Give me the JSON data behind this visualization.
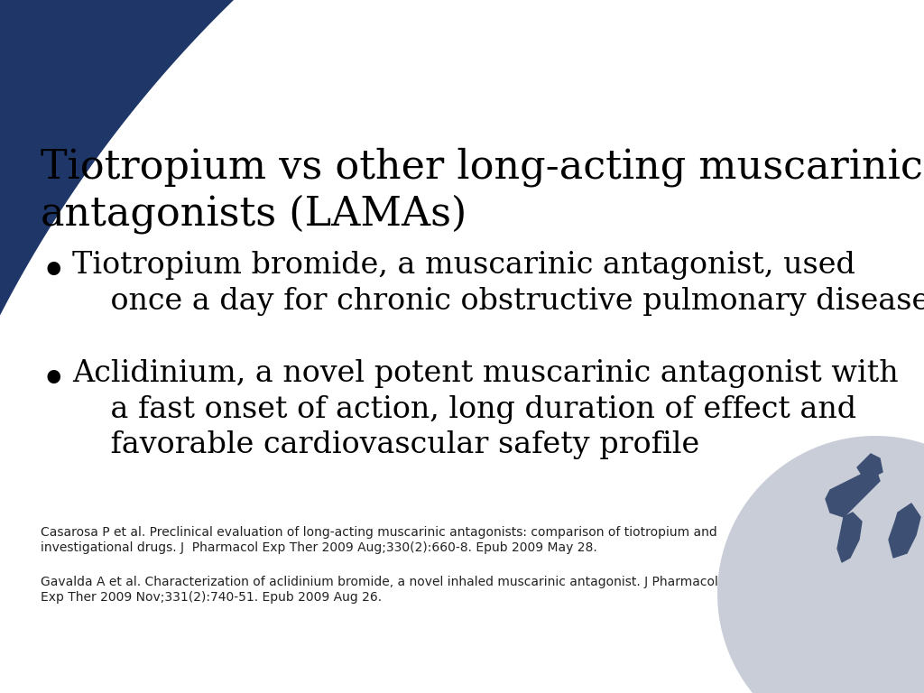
{
  "title_line1": "Tiotropium vs other long-acting muscarinic",
  "title_line2": "antagonists (LAMAs)",
  "bullet1_line1": "Tiotropium bromide, a muscarinic antagonist, used",
  "bullet1_line2": "once a day for chronic obstructive pulmonary disease",
  "bullet2_line1": "Aclidinium, a novel potent muscarinic antagonist with",
  "bullet2_line2": "a fast onset of action, long duration of effect and",
  "bullet2_line3": "favorable cardiovascular safety profile",
  "ref1": "Casarosa P et al. Preclinical evaluation of long-acting muscarinic antagonists: comparison of tiotropium and\ninvestigational drugs. J  Pharmacol Exp Ther 2009 Aug;330(2):660-8. Epub 2009 May 28.",
  "ref2": "Gavalda A et al. Characterization of aclidinium bromide, a novel inhaled muscarinic antagonist. J Pharmacol\nExp Ther 2009 Nov;331(2):740-51. Epub 2009 Aug 26.",
  "bg_color": "#ffffff",
  "header_color": "#1e3668",
  "text_color": "#000000",
  "globe_color": "#c8cdd8",
  "continent_color": "#3d5073"
}
